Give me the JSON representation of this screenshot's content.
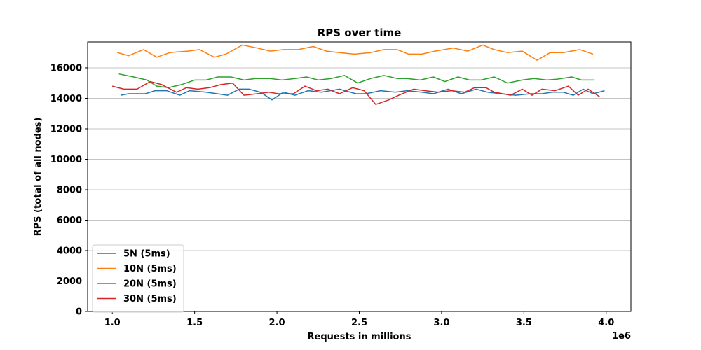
{
  "chart_data": {
    "type": "line",
    "title": "RPS over time",
    "xlabel": "Requests in millions",
    "ylabel": "RPS (total of all nodes)",
    "x_offset_text": "1e6",
    "xlim": [
      850000,
      4150000
    ],
    "ylim": [
      0,
      17700
    ],
    "xticks": [
      1000000,
      1500000,
      2000000,
      2500000,
      3000000,
      3500000,
      4000000
    ],
    "xtick_labels": [
      "1.0",
      "1.5",
      "2.0",
      "2.5",
      "3.0",
      "3.5",
      "4.0"
    ],
    "yticks": [
      0,
      2000,
      4000,
      6000,
      8000,
      10000,
      12000,
      14000,
      16000
    ],
    "ytick_labels": [
      "0",
      "2000",
      "4000",
      "6000",
      "8000",
      "10000",
      "12000",
      "14000",
      "16000"
    ],
    "grid": "horizontal",
    "legend_position": "lower-left",
    "series": [
      {
        "name": "5N (5ms)",
        "color": "#1f77b4",
        "points": [
          [
            1050000,
            14200
          ],
          [
            1100000,
            14300
          ],
          [
            1200000,
            14300
          ],
          [
            1260000,
            14500
          ],
          [
            1330000,
            14500
          ],
          [
            1410000,
            14200
          ],
          [
            1470000,
            14500
          ],
          [
            1570000,
            14400
          ],
          [
            1700000,
            14200
          ],
          [
            1770000,
            14600
          ],
          [
            1830000,
            14600
          ],
          [
            1900000,
            14400
          ],
          [
            1970000,
            13900
          ],
          [
            2040000,
            14400
          ],
          [
            2110000,
            14200
          ],
          [
            2190000,
            14500
          ],
          [
            2270000,
            14400
          ],
          [
            2380000,
            14600
          ],
          [
            2480000,
            14300
          ],
          [
            2540000,
            14300
          ],
          [
            2630000,
            14500
          ],
          [
            2720000,
            14400
          ],
          [
            2790000,
            14500
          ],
          [
            2880000,
            14400
          ],
          [
            2950000,
            14300
          ],
          [
            3040000,
            14600
          ],
          [
            3120000,
            14300
          ],
          [
            3210000,
            14600
          ],
          [
            3280000,
            14400
          ],
          [
            3360000,
            14300
          ],
          [
            3450000,
            14200
          ],
          [
            3540000,
            14300
          ],
          [
            3610000,
            14300
          ],
          [
            3670000,
            14400
          ],
          [
            3740000,
            14400
          ],
          [
            3800000,
            14200
          ],
          [
            3860000,
            14600
          ],
          [
            3920000,
            14300
          ],
          [
            3990000,
            14500
          ]
        ]
      },
      {
        "name": "10N (5ms)",
        "color": "#ff7f0e",
        "points": [
          [
            1030000,
            17000
          ],
          [
            1100000,
            16800
          ],
          [
            1190000,
            17200
          ],
          [
            1270000,
            16700
          ],
          [
            1350000,
            17000
          ],
          [
            1400000,
            17050
          ],
          [
            1460000,
            17100
          ],
          [
            1530000,
            17200
          ],
          [
            1620000,
            16700
          ],
          [
            1690000,
            16900
          ],
          [
            1790000,
            17500
          ],
          [
            1880000,
            17300
          ],
          [
            1960000,
            17100
          ],
          [
            2040000,
            17200
          ],
          [
            2130000,
            17200
          ],
          [
            2220000,
            17400
          ],
          [
            2300000,
            17100
          ],
          [
            2380000,
            17000
          ],
          [
            2470000,
            16900
          ],
          [
            2570000,
            17000
          ],
          [
            2650000,
            17200
          ],
          [
            2730000,
            17200
          ],
          [
            2800000,
            16900
          ],
          [
            2880000,
            16900
          ],
          [
            2960000,
            17100
          ],
          [
            3070000,
            17300
          ],
          [
            3160000,
            17100
          ],
          [
            3250000,
            17500
          ],
          [
            3320000,
            17200
          ],
          [
            3400000,
            17000
          ],
          [
            3490000,
            17100
          ],
          [
            3580000,
            16500
          ],
          [
            3660000,
            17000
          ],
          [
            3740000,
            17000
          ],
          [
            3840000,
            17200
          ],
          [
            3920000,
            16900
          ]
        ]
      },
      {
        "name": "20N (5ms)",
        "color": "#2ca02c",
        "points": [
          [
            1040000,
            15600
          ],
          [
            1130000,
            15400
          ],
          [
            1210000,
            15200
          ],
          [
            1270000,
            14800
          ],
          [
            1340000,
            14700
          ],
          [
            1420000,
            14900
          ],
          [
            1500000,
            15200
          ],
          [
            1570000,
            15200
          ],
          [
            1640000,
            15400
          ],
          [
            1720000,
            15400
          ],
          [
            1800000,
            15200
          ],
          [
            1870000,
            15300
          ],
          [
            1960000,
            15300
          ],
          [
            2030000,
            15200
          ],
          [
            2110000,
            15300
          ],
          [
            2180000,
            15400
          ],
          [
            2250000,
            15200
          ],
          [
            2330000,
            15300
          ],
          [
            2410000,
            15500
          ],
          [
            2490000,
            15000
          ],
          [
            2570000,
            15300
          ],
          [
            2650000,
            15500
          ],
          [
            2730000,
            15300
          ],
          [
            2790000,
            15300
          ],
          [
            2870000,
            15200
          ],
          [
            2950000,
            15400
          ],
          [
            3020000,
            15100
          ],
          [
            3100000,
            15400
          ],
          [
            3170000,
            15200
          ],
          [
            3240000,
            15200
          ],
          [
            3320000,
            15400
          ],
          [
            3400000,
            15000
          ],
          [
            3490000,
            15200
          ],
          [
            3560000,
            15300
          ],
          [
            3640000,
            15200
          ],
          [
            3700000,
            15250
          ],
          [
            3790000,
            15400
          ],
          [
            3850000,
            15200
          ],
          [
            3930000,
            15200
          ]
        ]
      },
      {
        "name": "30N (5ms)",
        "color": "#d62728",
        "points": [
          [
            1000000,
            14800
          ],
          [
            1070000,
            14600
          ],
          [
            1150000,
            14600
          ],
          [
            1230000,
            15100
          ],
          [
            1300000,
            14900
          ],
          [
            1390000,
            14400
          ],
          [
            1450000,
            14700
          ],
          [
            1520000,
            14600
          ],
          [
            1590000,
            14700
          ],
          [
            1660000,
            14900
          ],
          [
            1730000,
            15000
          ],
          [
            1800000,
            14200
          ],
          [
            1880000,
            14300
          ],
          [
            1950000,
            14400
          ],
          [
            2010000,
            14300
          ],
          [
            2100000,
            14300
          ],
          [
            2170000,
            14800
          ],
          [
            2240000,
            14500
          ],
          [
            2310000,
            14600
          ],
          [
            2380000,
            14300
          ],
          [
            2460000,
            14700
          ],
          [
            2530000,
            14500
          ],
          [
            2600000,
            13600
          ],
          [
            2680000,
            13900
          ],
          [
            2740000,
            14200
          ],
          [
            2830000,
            14600
          ],
          [
            2900000,
            14500
          ],
          [
            2980000,
            14400
          ],
          [
            3060000,
            14500
          ],
          [
            3140000,
            14400
          ],
          [
            3200000,
            14700
          ],
          [
            3270000,
            14700
          ],
          [
            3320000,
            14400
          ],
          [
            3420000,
            14200
          ],
          [
            3490000,
            14600
          ],
          [
            3550000,
            14200
          ],
          [
            3610000,
            14600
          ],
          [
            3690000,
            14500
          ],
          [
            3770000,
            14800
          ],
          [
            3830000,
            14200
          ],
          [
            3890000,
            14600
          ],
          [
            3960000,
            14100
          ]
        ]
      }
    ]
  }
}
